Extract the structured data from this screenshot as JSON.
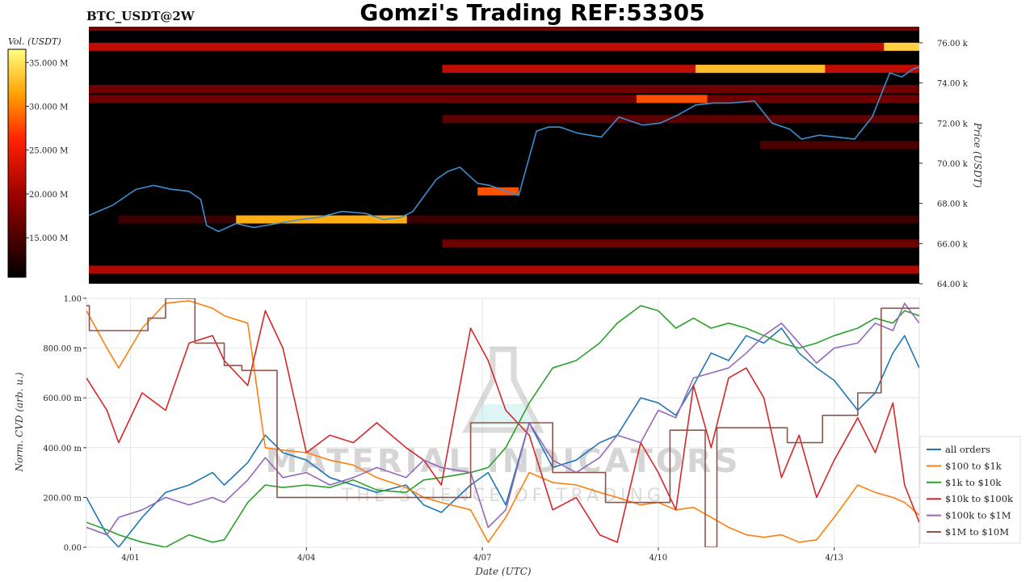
{
  "header": {
    "symbol": "BTC_USDT@2W",
    "title": "Gomzi's Trading REF:53305"
  },
  "watermark": {
    "line1": "MATERIAL INDICATORS",
    "line2": "THE SCIENCE OF TRADING"
  },
  "colors": {
    "heatmap_bg": "#000000",
    "price_line": "#3a8fd0",
    "grid": "#e6e6e6",
    "series": [
      "#1f77b4",
      "#ff7f0e",
      "#2ca02c",
      "#d62728",
      "#9467bd",
      "#8c564b"
    ]
  },
  "chart_data": [
    {
      "type": "heatmap",
      "colorbar": {
        "label": "Vol. (USDT)",
        "ticks": [
          "15.000 M",
          "20.000 M",
          "25.000 M",
          "30.000 M",
          "35.000 M"
        ],
        "tick_values": [
          15,
          20,
          25,
          30,
          35
        ],
        "range": [
          10.5,
          36.5
        ],
        "colormap": "hot"
      },
      "ylabel": "Price (USDT)",
      "ylim": [
        64000,
        76800
      ],
      "yticks": [
        "64.00 k",
        "66.00 k",
        "68.00 k",
        "70.00 k",
        "72.00 k",
        "74.00 k",
        "76.00 k"
      ],
      "ytick_values": [
        64000,
        66000,
        68000,
        70000,
        72000,
        74000,
        76000
      ],
      "xlim": [
        0,
        14.1
      ],
      "liquidity_bands": [
        {
          "price": 64700,
          "x": [
            0,
            14.1
          ],
          "volume": 21
        },
        {
          "price": 66000,
          "x": [
            6.0,
            14.1
          ],
          "volume": 17
        },
        {
          "price": 67200,
          "x": [
            0.5,
            14.1
          ],
          "volume": 14
        },
        {
          "price": 73200,
          "x": [
            0,
            14.1
          ],
          "volume": 17
        },
        {
          "price": 73700,
          "x": [
            0,
            14.1
          ],
          "volume": 17
        },
        {
          "price": 74700,
          "x": [
            6.0,
            14.1
          ],
          "volume": 22
        },
        {
          "price": 75800,
          "x": [
            0,
            14.1
          ],
          "volume": 22
        },
        {
          "price": 76800,
          "x": [
            0,
            14.1
          ],
          "volume": 18
        },
        {
          "price": 72200,
          "x": [
            6.0,
            14.1
          ],
          "volume": 16
        },
        {
          "price": 70900,
          "x": [
            11.4,
            14.1
          ],
          "volume": 15
        }
      ],
      "hot_spots": [
        {
          "price": 67200,
          "x": [
            2.5,
            5.4
          ],
          "volume": 32
        },
        {
          "price": 74700,
          "x": [
            10.3,
            12.5
          ],
          "volume": 33
        },
        {
          "price": 75800,
          "x": [
            13.5,
            14.1
          ],
          "volume": 34
        },
        {
          "price": 73200,
          "x": [
            9.3,
            10.5
          ],
          "volume": 28
        },
        {
          "price": 68600,
          "x": [
            6.6,
            7.3
          ],
          "volume": 28
        }
      ],
      "price_series": {
        "name": "BTC price",
        "x": [
          0.0,
          0.4,
          0.8,
          1.1,
          1.4,
          1.7,
          1.9,
          2.0,
          2.2,
          2.5,
          2.8,
          3.2,
          3.6,
          3.9,
          4.3,
          4.7,
          5.0,
          5.3,
          5.5,
          5.9,
          6.1,
          6.3,
          6.6,
          6.8,
          7.1,
          7.3,
          7.6,
          7.8,
          8.0,
          8.3,
          8.7,
          9.0,
          9.4,
          9.7,
          10.0,
          10.3,
          10.6,
          10.9,
          11.3,
          11.6,
          11.9,
          12.1,
          12.4,
          12.7,
          13.0,
          13.3,
          13.6,
          13.8,
          14.0,
          14.1
        ],
        "y": [
          67400,
          67900,
          68700,
          68900,
          68700,
          68600,
          68200,
          66900,
          66600,
          67000,
          66800,
          67000,
          67200,
          67300,
          67600,
          67500,
          67200,
          67300,
          67600,
          69200,
          69600,
          69800,
          69000,
          68900,
          68600,
          68400,
          71600,
          71800,
          71800,
          71500,
          71300,
          72300,
          71900,
          72000,
          72400,
          72900,
          73000,
          73000,
          73100,
          72000,
          71700,
          71200,
          71400,
          71300,
          71200,
          72300,
          74500,
          74300,
          74700,
          74800
        ]
      }
    },
    {
      "type": "line",
      "xlabel": "Date (UTC)",
      "ylabel": "Norm. CVD (arb. u.)",
      "xlim": [
        -0.75,
        13.45
      ],
      "ylim": [
        0,
        1
      ],
      "xticks": [
        "4/01",
        "4/04",
        "4/07",
        "4/10",
        "4/13"
      ],
      "xtick_values": [
        0,
        3,
        6,
        9,
        12
      ],
      "yticks": [
        "0.00",
        "200.00 m",
        "400.00 m",
        "600.00 m",
        "800.00 m",
        "1.00"
      ],
      "ytick_values": [
        0,
        0.2,
        0.4,
        0.6,
        0.8,
        1.0
      ],
      "legend_position": "right",
      "series": [
        {
          "name": "all orders",
          "x": [
            -0.75,
            -0.4,
            -0.2,
            0.2,
            0.6,
            1.0,
            1.4,
            1.6,
            2.0,
            2.3,
            2.6,
            3.0,
            3.4,
            3.8,
            4.2,
            4.7,
            5.0,
            5.3,
            5.8,
            6.1,
            6.4,
            6.8,
            7.2,
            7.6,
            8.0,
            8.3,
            8.7,
            9.0,
            9.3,
            9.6,
            9.9,
            10.2,
            10.5,
            10.8,
            11.1,
            11.4,
            11.7,
            12.0,
            12.4,
            12.7,
            13.0,
            13.2,
            13.45
          ],
          "y": [
            0.2,
            0.05,
            0.0,
            0.12,
            0.22,
            0.25,
            0.3,
            0.25,
            0.34,
            0.45,
            0.38,
            0.35,
            0.28,
            0.25,
            0.22,
            0.25,
            0.17,
            0.14,
            0.25,
            0.3,
            0.17,
            0.5,
            0.32,
            0.35,
            0.42,
            0.45,
            0.6,
            0.58,
            0.53,
            0.65,
            0.78,
            0.75,
            0.85,
            0.82,
            0.88,
            0.78,
            0.72,
            0.67,
            0.55,
            0.62,
            0.78,
            0.85,
            0.72
          ]
        },
        {
          "name": "$100 to $1k",
          "x": [
            -0.75,
            -0.4,
            -0.2,
            0.2,
            0.6,
            1.0,
            1.4,
            1.6,
            2.0,
            2.3,
            2.6,
            3.0,
            3.4,
            3.8,
            4.2,
            4.7,
            5.0,
            5.3,
            5.8,
            6.1,
            6.4,
            6.8,
            7.2,
            7.6,
            8.0,
            8.3,
            8.7,
            9.0,
            9.3,
            9.6,
            9.9,
            10.2,
            10.5,
            10.8,
            11.1,
            11.4,
            11.7,
            12.0,
            12.4,
            12.7,
            13.0,
            13.2,
            13.45
          ],
          "y": [
            0.95,
            0.8,
            0.72,
            0.88,
            0.98,
            0.99,
            0.96,
            0.93,
            0.9,
            0.4,
            0.39,
            0.38,
            0.35,
            0.33,
            0.28,
            0.24,
            0.2,
            0.18,
            0.15,
            0.02,
            0.12,
            0.3,
            0.26,
            0.25,
            0.22,
            0.2,
            0.17,
            0.18,
            0.15,
            0.16,
            0.12,
            0.08,
            0.05,
            0.04,
            0.05,
            0.02,
            0.03,
            0.12,
            0.25,
            0.22,
            0.2,
            0.18,
            0.13
          ]
        },
        {
          "name": "$1k to $10k",
          "x": [
            -0.75,
            -0.4,
            -0.2,
            0.2,
            0.6,
            1.0,
            1.4,
            1.6,
            2.0,
            2.3,
            2.6,
            3.0,
            3.4,
            3.8,
            4.2,
            4.7,
            5.0,
            5.3,
            5.8,
            6.1,
            6.4,
            6.8,
            7.2,
            7.6,
            8.0,
            8.3,
            8.7,
            9.0,
            9.3,
            9.6,
            9.9,
            10.2,
            10.5,
            10.8,
            11.1,
            11.4,
            11.7,
            12.0,
            12.4,
            12.7,
            13.0,
            13.2,
            13.45
          ],
          "y": [
            0.1,
            0.07,
            0.05,
            0.02,
            0.0,
            0.05,
            0.02,
            0.03,
            0.18,
            0.25,
            0.24,
            0.25,
            0.24,
            0.27,
            0.23,
            0.22,
            0.27,
            0.28,
            0.3,
            0.32,
            0.4,
            0.58,
            0.72,
            0.75,
            0.82,
            0.9,
            0.97,
            0.95,
            0.88,
            0.92,
            0.88,
            0.9,
            0.88,
            0.85,
            0.82,
            0.8,
            0.82,
            0.85,
            0.88,
            0.92,
            0.9,
            0.95,
            0.93
          ]
        },
        {
          "name": "$10k to $100k",
          "x": [
            -0.75,
            -0.4,
            -0.2,
            0.2,
            0.6,
            1.0,
            1.4,
            1.6,
            2.0,
            2.3,
            2.6,
            3.0,
            3.4,
            3.8,
            4.2,
            4.7,
            5.0,
            5.3,
            5.8,
            6.1,
            6.4,
            6.8,
            7.2,
            7.6,
            8.0,
            8.3,
            8.7,
            9.0,
            9.3,
            9.6,
            9.9,
            10.2,
            10.5,
            10.8,
            11.1,
            11.4,
            11.7,
            12.0,
            12.4,
            12.7,
            13.0,
            13.2,
            13.45
          ],
          "y": [
            0.68,
            0.55,
            0.42,
            0.62,
            0.55,
            0.82,
            0.85,
            0.75,
            0.65,
            0.95,
            0.8,
            0.38,
            0.45,
            0.42,
            0.5,
            0.4,
            0.35,
            0.25,
            0.88,
            0.75,
            0.55,
            0.45,
            0.15,
            0.2,
            0.05,
            0.02,
            0.42,
            0.3,
            0.15,
            0.65,
            0.4,
            0.68,
            0.72,
            0.6,
            0.28,
            0.45,
            0.2,
            0.35,
            0.52,
            0.38,
            0.58,
            0.25,
            0.1
          ]
        },
        {
          "name": "$100k to $1M",
          "x": [
            -0.75,
            -0.4,
            -0.2,
            0.2,
            0.6,
            1.0,
            1.4,
            1.6,
            2.0,
            2.3,
            2.6,
            3.0,
            3.4,
            3.8,
            4.2,
            4.7,
            5.0,
            5.3,
            5.8,
            6.1,
            6.4,
            6.8,
            7.2,
            7.6,
            8.0,
            8.3,
            8.7,
            9.0,
            9.3,
            9.6,
            9.9,
            10.2,
            10.5,
            10.8,
            11.1,
            11.4,
            11.7,
            12.0,
            12.4,
            12.7,
            13.0,
            13.2,
            13.45
          ],
          "y": [
            0.08,
            0.05,
            0.12,
            0.15,
            0.2,
            0.17,
            0.2,
            0.18,
            0.27,
            0.36,
            0.28,
            0.3,
            0.25,
            0.28,
            0.32,
            0.28,
            0.35,
            0.32,
            0.3,
            0.08,
            0.15,
            0.5,
            0.35,
            0.3,
            0.36,
            0.45,
            0.42,
            0.55,
            0.52,
            0.68,
            0.7,
            0.72,
            0.78,
            0.85,
            0.9,
            0.82,
            0.74,
            0.8,
            0.82,
            0.9,
            0.87,
            0.98,
            0.9
          ]
        },
        {
          "name": "$1M to $10M",
          "x": [
            -0.75,
            -0.7,
            -0.7,
            0.3,
            0.3,
            0.6,
            0.6,
            1.1,
            1.1,
            1.6,
            1.6,
            1.9,
            1.9,
            2.5,
            2.5,
            3.2,
            3.2,
            5.8,
            5.8,
            7.2,
            7.2,
            8.1,
            8.1,
            9.2,
            9.2,
            9.8,
            9.8,
            10.0,
            10.0,
            11.2,
            11.2,
            11.8,
            11.8,
            12.4,
            12.4,
            12.8,
            12.8,
            13.45
          ],
          "y": [
            0.97,
            0.97,
            0.87,
            0.87,
            0.92,
            0.92,
            1.0,
            1.0,
            0.82,
            0.82,
            0.73,
            0.73,
            0.71,
            0.71,
            0.2,
            0.2,
            0.2,
            0.2,
            0.5,
            0.5,
            0.3,
            0.3,
            0.18,
            0.18,
            0.47,
            0.47,
            0.0,
            0.0,
            0.48,
            0.48,
            0.42,
            0.42,
            0.53,
            0.53,
            0.62,
            0.62,
            0.96,
            0.96
          ]
        }
      ]
    }
  ]
}
